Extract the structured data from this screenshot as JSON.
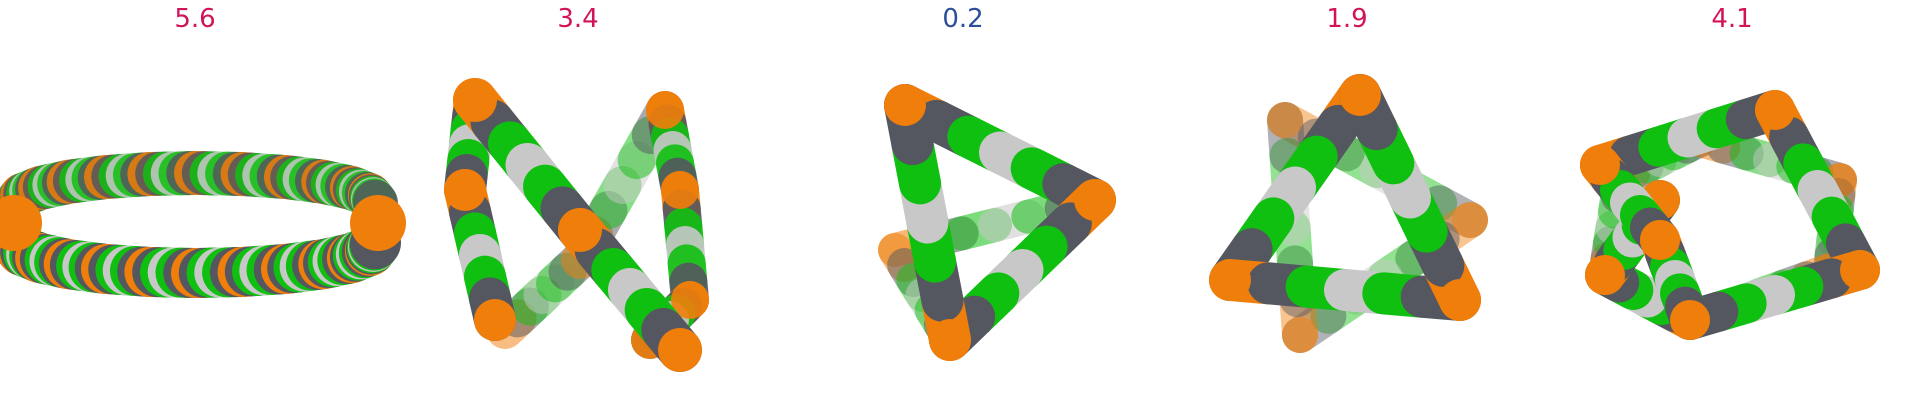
{
  "panels": [
    {
      "label": "5.6",
      "label_color": "#d1145a",
      "shape": "ring-edge"
    },
    {
      "label": "3.4",
      "label_color": "#d1145a",
      "shape": "figure-eight"
    },
    {
      "label": "0.2",
      "label_color": "#2b4e9a",
      "shape": "triangle"
    },
    {
      "label": "1.9",
      "label_color": "#d1145a",
      "shape": "star-of-david"
    },
    {
      "label": "4.1",
      "label_color": "#d1145a",
      "shape": "hexagram"
    }
  ],
  "colors": {
    "orange": "#f07e0a",
    "dark_gray": "#54575f",
    "light_gray": "#c8c8c8",
    "green": "#10c010"
  }
}
